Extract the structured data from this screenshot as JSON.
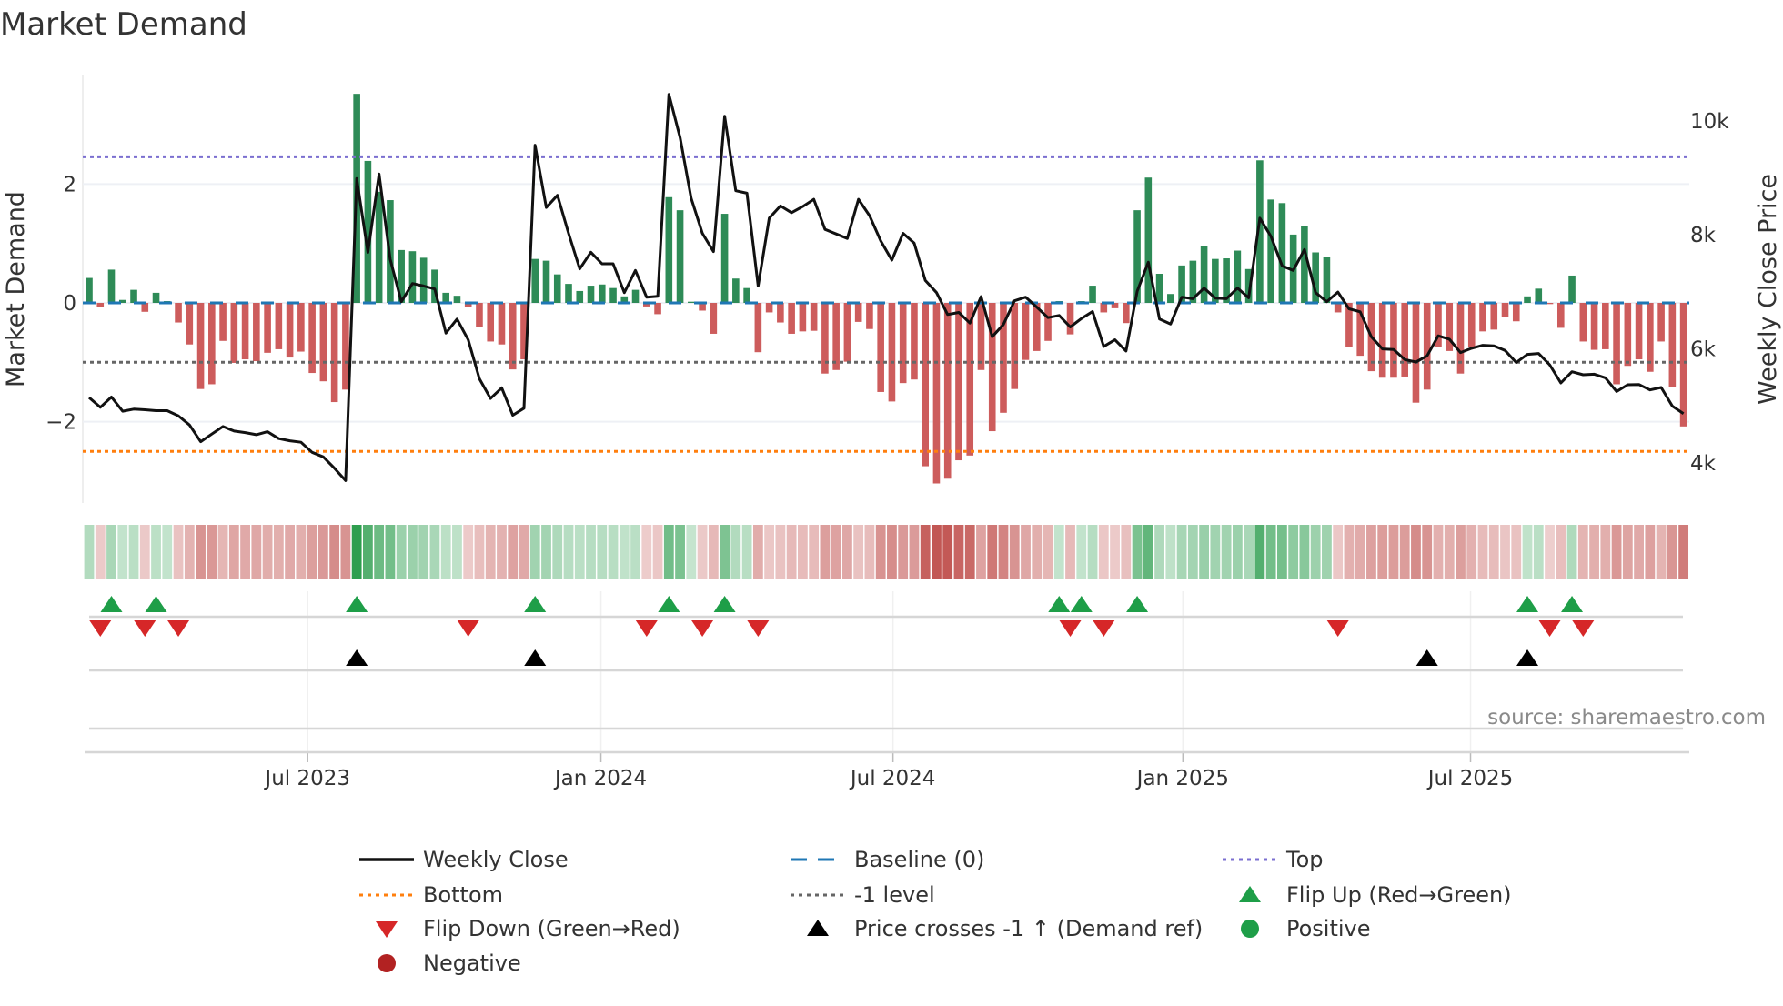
{
  "chart_data": {
    "type": "bar",
    "title": "Market Demand",
    "ylabel": "Market Demand",
    "y2label": "Weekly Close Price",
    "ylim": [
      -3.3,
      3.6
    ],
    "y2lim": [
      3400,
      10600
    ],
    "yticks": [
      {
        "v": 2,
        "label": "2"
      },
      {
        "v": 0,
        "label": "0"
      },
      {
        "v": -2,
        "label": "−2"
      }
    ],
    "y2ticks": [
      {
        "v": 10000,
        "label": "10k"
      },
      {
        "v": 8000,
        "label": "8k"
      },
      {
        "v": 6000,
        "label": "6k"
      },
      {
        "v": 4000,
        "label": "4k"
      }
    ],
    "xticks": [
      {
        "week": 20.6,
        "label": "Jul 2023"
      },
      {
        "week": 46.9,
        "label": "Jan 2024"
      },
      {
        "week": 73.1,
        "label": "Jul 2024"
      },
      {
        "week": 99.1,
        "label": "Jan 2025"
      },
      {
        "week": 124.9,
        "label": "Jul 2025"
      }
    ],
    "levels": {
      "top": 2.46,
      "bottom": -2.5,
      "minus_one": -1.0,
      "baseline": 0
    },
    "demand": [
      0.42,
      -0.07,
      0.56,
      0.05,
      0.22,
      -0.15,
      0.17,
      0.03,
      -0.33,
      -0.7,
      -1.45,
      -1.37,
      -0.64,
      -1.01,
      -0.95,
      -0.98,
      -0.84,
      -0.78,
      -0.92,
      -0.82,
      -1.18,
      -1.32,
      -1.67,
      -1.46,
      3.52,
      2.39,
      1.87,
      1.73,
      0.89,
      0.87,
      0.76,
      0.56,
      0.17,
      0.12,
      -0.07,
      -0.41,
      -0.65,
      -0.7,
      -1.12,
      -0.95,
      0.74,
      0.71,
      0.48,
      0.32,
      0.2,
      0.29,
      0.31,
      0.25,
      0.11,
      0.22,
      -0.06,
      -0.19,
      1.78,
      1.56,
      0.02,
      -0.13,
      -0.52,
      1.5,
      0.41,
      0.25,
      -0.83,
      -0.16,
      -0.33,
      -0.52,
      -0.48,
      -0.47,
      -1.19,
      -1.13,
      -0.99,
      -0.32,
      -0.44,
      -1.5,
      -1.66,
      -1.35,
      -1.29,
      -2.75,
      -3.04,
      -2.96,
      -2.65,
      -2.57,
      -1.13,
      -2.16,
      -1.85,
      -1.45,
      -0.96,
      -0.81,
      -0.64,
      0.03,
      -0.53,
      0.03,
      0.29,
      -0.16,
      -0.09,
      -0.34,
      1.56,
      2.11,
      0.49,
      0.15,
      0.63,
      0.71,
      0.95,
      0.74,
      0.75,
      0.88,
      0.57,
      2.4,
      1.74,
      1.68,
      1.15,
      1.3,
      0.85,
      0.78,
      -0.16,
      -0.74,
      -0.89,
      -1.15,
      -1.26,
      -1.26,
      -1.24,
      -1.68,
      -1.46,
      -0.74,
      -0.81,
      -1.19,
      -0.75,
      -0.48,
      -0.45,
      -0.24,
      -0.31,
      0.11,
      0.24,
      -0.02,
      -0.42,
      0.46,
      -0.65,
      -0.79,
      -0.78,
      -1.37,
      -1.06,
      -0.95,
      -1.16,
      -0.65,
      -1.41,
      -2.08
    ],
    "weekly_close": [
      5147,
      4976,
      5157,
      4907,
      4944,
      4933,
      4917,
      4917,
      4827,
      4667,
      4373,
      4507,
      4640,
      4560,
      4533,
      4496,
      4549,
      4427,
      4389,
      4363,
      4187,
      4107,
      3909,
      3691,
      8987,
      7691,
      9067,
      7573,
      6827,
      7147,
      7104,
      7051,
      6277,
      6523,
      6160,
      5477,
      5131,
      5317,
      4837,
      4960,
      9573,
      8480,
      8693,
      8027,
      7403,
      7696,
      7493,
      7493,
      6987,
      7376,
      6907,
      6923,
      10464,
      9707,
      8640,
      8027,
      7707,
      10080,
      8773,
      8731,
      7104,
      8293,
      8507,
      8389,
      8496,
      8624,
      8096,
      8016,
      7936,
      8624,
      8336,
      7893,
      7557,
      8027,
      7856,
      7200,
      6987,
      6603,
      6640,
      6453,
      6917,
      6213,
      6427,
      6843,
      6907,
      6731,
      6549,
      6587,
      6384,
      6533,
      6656,
      6043,
      6160,
      5963,
      7013,
      7520,
      6523,
      6437,
      6907,
      6880,
      7067,
      6891,
      6880,
      7067,
      6896,
      8293,
      7973,
      7456,
      7376,
      7744,
      6987,
      6827,
      6997,
      6704,
      6651,
      6213,
      6000,
      5989,
      5813,
      5771,
      5877,
      6229,
      6171,
      5936,
      6011,
      6064,
      6053,
      5973,
      5760,
      5904,
      5920,
      5723,
      5403,
      5600,
      5547,
      5557,
      5493,
      5253,
      5371,
      5376,
      5280,
      5323,
      4997,
      4864
    ],
    "flip_up_weeks": [
      3,
      7,
      25,
      41,
      53,
      58,
      88,
      90,
      95,
      130,
      134
    ],
    "flip_down_weeks": [
      2,
      6,
      9,
      35,
      51,
      56,
      61,
      89,
      92,
      113,
      132,
      135
    ],
    "price_cross_weeks": [
      25,
      41,
      121,
      130
    ],
    "legend": [
      {
        "label": "Weekly Close",
        "symbol": "line",
        "color": "#111111"
      },
      {
        "label": "Baseline (0)",
        "symbol": "dash",
        "color": "#1f77b4"
      },
      {
        "label": "Top",
        "symbol": "dot",
        "color": "#7b6fd0"
      },
      {
        "label": "Bottom",
        "symbol": "dot",
        "color": "#ff7f0e"
      },
      {
        "label": "-1 level",
        "symbol": "dot",
        "color": "#666666"
      },
      {
        "label": "Flip Up (Red→Green)",
        "symbol": "tri-up",
        "color": "#1e9e48"
      },
      {
        "label": "Flip Down (Green→Red)",
        "symbol": "tri-down",
        "color": "#d62728"
      },
      {
        "label": "Price crosses -1 ↑ (Demand ref)",
        "symbol": "tri-up",
        "color": "#000000"
      },
      {
        "label": "Positive",
        "symbol": "circle",
        "color": "#1e9e48"
      },
      {
        "label": "Negative",
        "symbol": "circle",
        "color": "#b22222"
      }
    ],
    "source": "source: sharemaestro.com"
  },
  "colors": {
    "positive_bar": "#2e8b57",
    "negative_bar": "#cd5c5c",
    "heat_pos": "#2e9e4f",
    "heat_neg": "#c0504d"
  }
}
